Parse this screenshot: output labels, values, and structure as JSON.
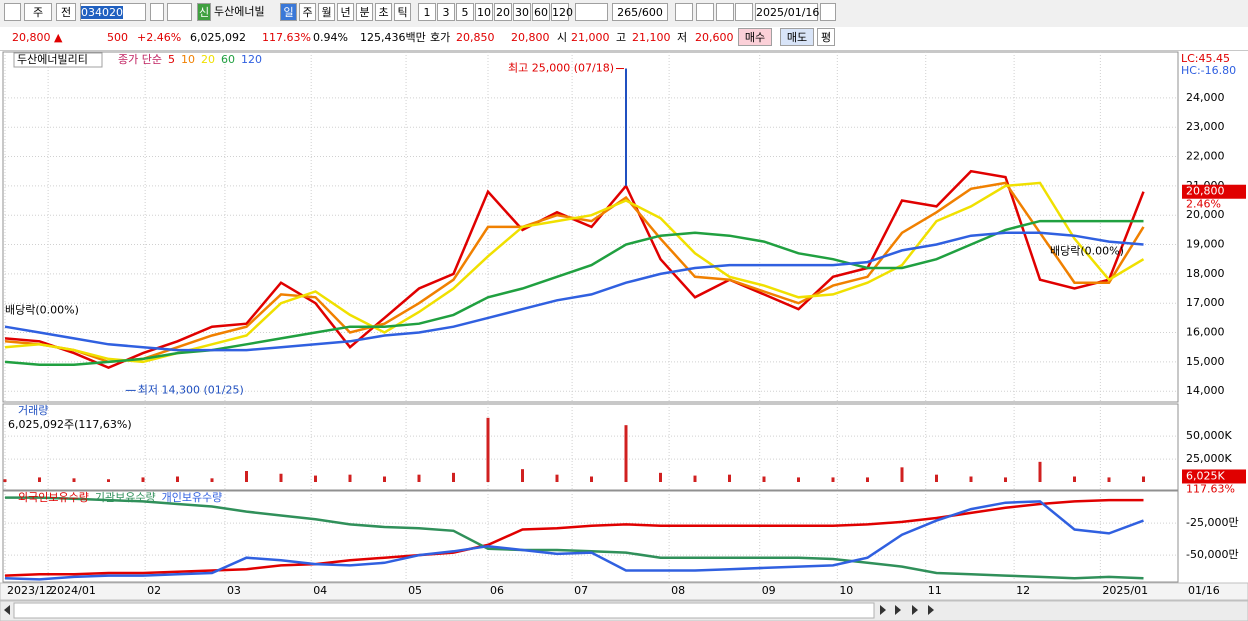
{
  "toolbar": {
    "market": "주",
    "prev": "전",
    "code": "034020",
    "new_badge": "신",
    "name": "두산에너빌",
    "periods": [
      "일",
      "주",
      "월",
      "년",
      "분",
      "초",
      "틱"
    ],
    "intervals": [
      "1",
      "3",
      "5",
      "10",
      "20",
      "30",
      "60",
      "120"
    ],
    "count": "265",
    "max_count": "/600",
    "date": "2025/01/16"
  },
  "info_bar": {
    "price": "20,800 ▲",
    "change": "500",
    "rate": "+2.46%",
    "volume": "6,025,092",
    "volume_ratio": "117.63%",
    "turnover": "0.94%",
    "amount": "125,436백만",
    "ask_label": "호가",
    "ask": "20,850",
    "bid": "20,800",
    "open_label": "시",
    "open": "21,000",
    "high_label": "고",
    "high": "21,100",
    "low_label": "저",
    "low": "20,600",
    "buy": "매수",
    "sell": "매도",
    "avg": "평"
  },
  "chart_data": [
    {
      "type": "line",
      "name": "두산에너빌리티",
      "legend_title": "종가 단순",
      "indicators": [
        "LC:45.45",
        "HC:-16.80"
      ],
      "x": [
        0,
        8,
        16,
        24,
        32,
        40,
        48,
        56,
        64,
        72,
        80,
        88,
        96,
        104,
        112,
        120,
        128,
        136,
        144,
        152,
        160,
        168,
        176,
        184,
        192,
        200,
        208,
        216,
        224,
        232,
        240,
        248,
        256,
        264
      ],
      "xlim": [
        0,
        272
      ],
      "ylim": [
        13700,
        24950
      ],
      "yticks": [
        {
          "value": 14000,
          "label": "14,000"
        },
        {
          "value": 15000,
          "label": "15,000"
        },
        {
          "value": 16000,
          "label": "16,000"
        },
        {
          "value": 17000,
          "label": "17,000"
        },
        {
          "value": 18000,
          "label": "18,000"
        },
        {
          "value": 19000,
          "label": "19,000"
        },
        {
          "value": 20000,
          "label": "20,000"
        },
        {
          "value": 21000,
          "label": "21,000"
        },
        {
          "value": 22000,
          "label": "22,000"
        },
        {
          "value": 23000,
          "label": "23,000"
        },
        {
          "value": 24000,
          "label": "24,000"
        }
      ],
      "series": [
        {
          "name": "5",
          "color": "#e00000",
          "values": [
            15800,
            15700,
            15300,
            14800,
            15300,
            15700,
            16200,
            16300,
            17700,
            17000,
            15500,
            16500,
            17500,
            18000,
            20800,
            19500,
            20100,
            19600,
            21000,
            18500,
            17200,
            17800,
            17300,
            16800,
            17900,
            18200,
            20500,
            20300,
            21500,
            21300,
            17800,
            17500,
            17800,
            20800
          ]
        },
        {
          "name": "10",
          "color": "#f08000",
          "values": [
            15700,
            15600,
            15400,
            15000,
            15100,
            15500,
            15900,
            16200,
            17300,
            17200,
            16000,
            16300,
            17000,
            17800,
            19600,
            19600,
            20000,
            19800,
            20600,
            19200,
            17900,
            17800,
            17400,
            17000,
            17600,
            17900,
            19400,
            20100,
            20900,
            21100,
            19400,
            17700,
            17700,
            19600
          ]
        },
        {
          "name": "20",
          "color": "#f0e000",
          "values": [
            15500,
            15600,
            15400,
            15100,
            15000,
            15300,
            15600,
            15900,
            17000,
            17400,
            16600,
            16000,
            16700,
            17500,
            18600,
            19600,
            19800,
            20000,
            20500,
            19900,
            18700,
            17900,
            17600,
            17200,
            17300,
            17700,
            18300,
            19800,
            20300,
            21000,
            21100,
            19200,
            17800,
            18500
          ]
        },
        {
          "name": "60",
          "color": "#20a040",
          "values": [
            15000,
            14900,
            14900,
            15000,
            15100,
            15300,
            15400,
            15600,
            15800,
            16000,
            16200,
            16200,
            16300,
            16600,
            17200,
            17500,
            17900,
            18300,
            19000,
            19300,
            19400,
            19300,
            19100,
            18700,
            18500,
            18200,
            18200,
            18500,
            19000,
            19500,
            19800,
            19800,
            19800,
            19800
          ]
        },
        {
          "name": "120",
          "color": "#3060e0",
          "values": [
            16200,
            16000,
            15800,
            15600,
            15500,
            15400,
            15400,
            15400,
            15500,
            15600,
            15700,
            15900,
            16000,
            16200,
            16500,
            16800,
            17100,
            17300,
            17700,
            18000,
            18200,
            18300,
            18300,
            18300,
            18300,
            18400,
            18800,
            19000,
            19300,
            19400,
            19400,
            19300,
            19100,
            19000
          ]
        }
      ],
      "annotations": [
        {
          "text": "최고 25,000 (07/18)",
          "x": 144,
          "y": 25000
        },
        {
          "text": "최저 14,300 (01/25)",
          "x": 28,
          "y": 14300
        },
        {
          "text": "배당락(0.00%)",
          "x": 0
        },
        {
          "text": "배당락(0.00%)",
          "x": 256
        }
      ],
      "last_value": 20800,
      "last_value_label": "20,800",
      "last_change": "2.46%"
    },
    {
      "type": "bar",
      "title": "거래량",
      "subtitle": "6,025,092주(117,63%)",
      "color": "#d02020",
      "x": [
        0,
        8,
        16,
        24,
        32,
        40,
        48,
        56,
        64,
        72,
        80,
        88,
        96,
        104,
        112,
        120,
        128,
        136,
        144,
        152,
        160,
        168,
        176,
        184,
        192,
        200,
        208,
        216,
        224,
        232,
        240,
        248,
        256,
        264
      ],
      "xlim": [
        0,
        272
      ],
      "ylim": [
        0,
        72000
      ],
      "yticks": [
        {
          "value": 25000,
          "label": "25,000K"
        },
        {
          "value": 50000,
          "label": "50,000K"
        }
      ],
      "values": [
        3000,
        5000,
        4000,
        3000,
        5000,
        6000,
        4000,
        12000,
        9000,
        7000,
        8000,
        6000,
        8000,
        10000,
        70000,
        14000,
        8000,
        6000,
        62000,
        10000,
        7000,
        8000,
        6000,
        5000,
        5000,
        5000,
        16000,
        8000,
        6000,
        5000,
        22000,
        6000,
        5000,
        6025
      ],
      "last_value": 6025,
      "last_value_label": "6,025K",
      "last_ratio": "117.63%"
    },
    {
      "type": "line",
      "x": [
        0,
        8,
        16,
        24,
        32,
        40,
        48,
        56,
        64,
        72,
        80,
        88,
        96,
        104,
        112,
        120,
        128,
        136,
        144,
        152,
        160,
        168,
        176,
        184,
        192,
        200,
        208,
        216,
        224,
        232,
        240,
        248,
        256,
        264
      ],
      "xlim": [
        0,
        272
      ],
      "ylim": [
        -71000,
        -3000
      ],
      "yticks": [
        {
          "value": -50000,
          "label": "-50,000만"
        },
        {
          "value": -25000,
          "label": "-25,000만"
        }
      ],
      "xticks": [
        {
          "value": 0,
          "label": "2023/12"
        },
        {
          "value": 10,
          "label": "2024/01"
        },
        {
          "value": 32.5,
          "label": "02"
        },
        {
          "value": 51,
          "label": "03"
        },
        {
          "value": 71,
          "label": "04"
        },
        {
          "value": 93,
          "label": "05"
        },
        {
          "value": 112,
          "label": "06"
        },
        {
          "value": 131.5,
          "label": "07"
        },
        {
          "value": 154,
          "label": "08"
        },
        {
          "value": 175,
          "label": "09"
        },
        {
          "value": 193,
          "label": "10"
        },
        {
          "value": 213.5,
          "label": "11"
        },
        {
          "value": 234,
          "label": "12"
        },
        {
          "value": 254,
          "label": "2025/01"
        }
      ],
      "last_date": "01/16",
      "series": [
        {
          "name": "외국인보유수량",
          "color": "#e00000",
          "values": [
            -66000,
            -65000,
            -65000,
            -64000,
            -64000,
            -63000,
            -62000,
            -61000,
            -58000,
            -57000,
            -54000,
            -52000,
            -50000,
            -48000,
            -42000,
            -30000,
            -29000,
            -27000,
            -26000,
            -27000,
            -27000,
            -27000,
            -27000,
            -27000,
            -27000,
            -26000,
            -24000,
            -21000,
            -17000,
            -13000,
            -10000,
            -8000,
            -7000,
            -7000
          ]
        },
        {
          "name": "기관보유수량",
          "color": "#30905a",
          "values": [
            -5000,
            -5000,
            -6000,
            -7000,
            -8000,
            -10000,
            -12000,
            -16000,
            -19000,
            -22000,
            -26000,
            -28000,
            -29000,
            -31000,
            -45000,
            -46000,
            -46000,
            -47000,
            -48000,
            -52000,
            -52000,
            -52000,
            -52000,
            -52000,
            -53000,
            -56000,
            -59000,
            -64000,
            -65000,
            -66000,
            -67000,
            -68000,
            -67000,
            -68000
          ]
        },
        {
          "name": "개인보유수량",
          "color": "#3060e0",
          "values": [
            -68000,
            -69000,
            -67000,
            -66000,
            -66000,
            -65000,
            -64000,
            -52000,
            -54000,
            -57000,
            -58000,
            -56000,
            -50000,
            -47000,
            -43000,
            -46000,
            -49000,
            -48000,
            -62000,
            -62000,
            -62000,
            -61000,
            -60000,
            -59000,
            -58000,
            -52000,
            -34000,
            -23000,
            -14000,
            -9000,
            -8000,
            -30000,
            -33000,
            -23000
          ]
        }
      ]
    }
  ]
}
